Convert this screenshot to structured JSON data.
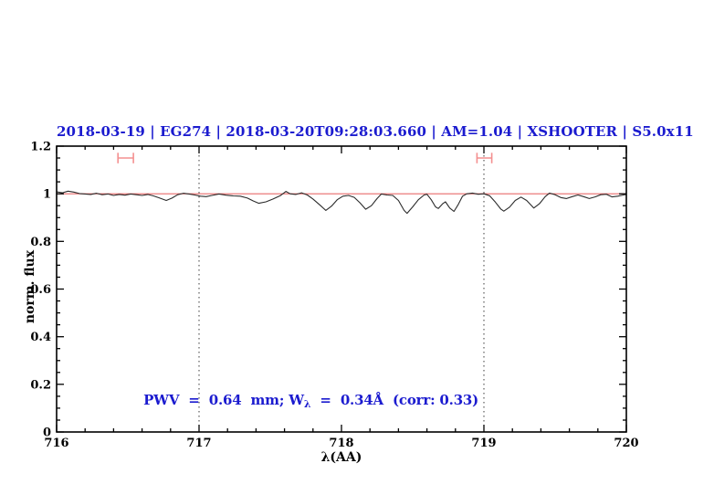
{
  "header": {
    "title": "2018-03-19 | EG274 | 2018-03-20T09:28:03.660 | AM=1.04 | XSHOOTER | S5.0x11"
  },
  "annotation": {
    "pre": "PWV  =  0.64  mm; W",
    "sub": "λ",
    "post": "  =  0.34Å  (corr: 0.33)"
  },
  "axes": {
    "xlabel": "λ(AA)",
    "ylabel": "norm. flux",
    "xlim": [
      716,
      720
    ],
    "ylim": [
      0,
      1.2
    ],
    "x_ticks": [
      716,
      717,
      718,
      719,
      720
    ],
    "x_tick_labels": [
      "716",
      "717",
      "718",
      "719",
      "720"
    ],
    "x_minor_step": 0.2,
    "y_ticks": [
      0,
      0.2,
      0.4,
      0.6,
      0.8,
      1,
      1.2
    ],
    "y_tick_labels": [
      "0",
      "0.2",
      "0.4",
      "0.6",
      "0.8",
      "1",
      "1.2"
    ],
    "y_minor_step": 0.05
  },
  "colors": {
    "title_blue": "#1b1bcf",
    "annotation_blue": "#1b1bcf",
    "continuum_red": "#e86a6a",
    "marker_salmon": "#f49090",
    "spectrum": "#2b2b2b",
    "frame": "#000000",
    "dotted": "#3a3a3a",
    "tick_text": "#000000",
    "background": "#ffffff"
  },
  "chart_data": {
    "type": "line",
    "title": "2018-03-19 | EG274 | 2018-03-20T09:28:03.660 | AM=1.04 | XSHOOTER | S5.0x11",
    "xlabel": "λ(AA)",
    "ylabel": "norm. flux",
    "xlim": [
      716,
      720
    ],
    "ylim": [
      0,
      1.2
    ],
    "grid": "none; dotted vertical reference lines only",
    "legend": "none",
    "vlines": [
      717,
      719
    ],
    "series": [
      {
        "name": "normalized-spectrum",
        "color": "#2b2b2b",
        "x": [
          716.0,
          716.04,
          716.08,
          716.12,
          716.16,
          716.2,
          716.24,
          716.28,
          716.32,
          716.36,
          716.4,
          716.44,
          716.48,
          716.52,
          716.56,
          716.6,
          716.64,
          716.68,
          716.72,
          716.77,
          716.81,
          716.85,
          716.89,
          716.93,
          716.97,
          717.01,
          717.05,
          717.09,
          717.14,
          717.19,
          717.24,
          717.29,
          717.34,
          717.38,
          717.42,
          717.47,
          717.52,
          717.57,
          717.61,
          717.64,
          717.68,
          717.72,
          717.76,
          717.8,
          717.85,
          717.89,
          717.93,
          717.97,
          718.01,
          718.05,
          718.09,
          718.13,
          718.17,
          718.21,
          718.25,
          718.28,
          718.32,
          718.36,
          718.4,
          718.44,
          718.46,
          718.5,
          718.54,
          718.58,
          718.6,
          718.63,
          718.66,
          718.68,
          718.71,
          718.73,
          718.76,
          718.79,
          718.82,
          718.85,
          718.88,
          718.92,
          718.96,
          719.0,
          719.04,
          719.08,
          719.12,
          719.14,
          719.18,
          719.22,
          719.26,
          719.3,
          719.35,
          719.39,
          719.43,
          719.46,
          719.5,
          719.54,
          719.58,
          719.62,
          719.66,
          719.7,
          719.74,
          719.78,
          719.82,
          719.86,
          719.9,
          719.94,
          719.98,
          720.0
        ],
        "y": [
          1.008,
          1.004,
          1.011,
          1.007,
          1.001,
          0.999,
          0.997,
          1.002,
          0.996,
          0.999,
          0.993,
          0.997,
          0.994,
          0.999,
          0.996,
          0.993,
          0.997,
          0.991,
          0.983,
          0.972,
          0.982,
          0.996,
          1.002,
          0.999,
          0.995,
          0.99,
          0.988,
          0.993,
          0.999,
          0.994,
          0.991,
          0.99,
          0.982,
          0.97,
          0.96,
          0.966,
          0.978,
          0.992,
          1.01,
          1.0,
          0.997,
          1.004,
          0.995,
          0.978,
          0.952,
          0.93,
          0.948,
          0.975,
          0.99,
          0.993,
          0.985,
          0.962,
          0.935,
          0.95,
          0.98,
          0.999,
          0.995,
          0.993,
          0.972,
          0.93,
          0.918,
          0.945,
          0.975,
          0.995,
          0.998,
          0.975,
          0.945,
          0.938,
          0.958,
          0.966,
          0.94,
          0.926,
          0.955,
          0.99,
          1.0,
          1.003,
          0.998,
          1.0,
          0.992,
          0.965,
          0.935,
          0.927,
          0.944,
          0.972,
          0.986,
          0.972,
          0.94,
          0.958,
          0.988,
          1.003,
          0.996,
          0.984,
          0.98,
          0.988,
          0.995,
          0.988,
          0.98,
          0.987,
          0.996,
          0.998,
          0.987,
          0.99,
          0.995,
          0.997
        ]
      },
      {
        "name": "continuum-reference",
        "color": "#e86a6a",
        "x": [
          716,
          720
        ],
        "y": [
          1.0,
          1.0
        ]
      }
    ],
    "range_markers": [
      {
        "x_center": 716.485,
        "x_half_width": 0.054,
        "y": 1.15,
        "cap_half_height": 0.022,
        "color": "#f49090"
      },
      {
        "x_center": 719.003,
        "x_half_width": 0.052,
        "y": 1.15,
        "cap_half_height": 0.022,
        "color": "#f49090"
      }
    ]
  }
}
